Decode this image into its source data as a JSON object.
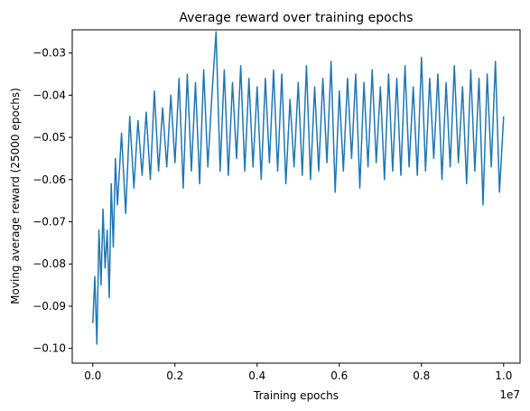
{
  "chart_data": {
    "type": "line",
    "title": "Average reward over training epochs",
    "xlabel": "Training epochs",
    "ylabel": "Moving average reward (25000 epochs)",
    "x_offset_label": "1e7",
    "xlim": [
      -500000,
      10400000
    ],
    "ylim": [
      -0.1035,
      -0.0245
    ],
    "x_ticks": [
      0,
      2000000,
      4000000,
      6000000,
      8000000,
      10000000
    ],
    "x_tick_labels": [
      "0.0",
      "0.2",
      "0.4",
      "0.6",
      "0.8",
      "1.0"
    ],
    "y_ticks": [
      -0.1,
      -0.09,
      -0.08,
      -0.07,
      -0.06,
      -0.05,
      -0.04,
      -0.03
    ],
    "y_tick_labels": [
      "−0.10",
      "−0.09",
      "−0.08",
      "−0.07",
      "−0.06",
      "−0.05",
      "−0.04",
      "−0.03"
    ],
    "grid": false,
    "legend": "none",
    "line_color": "#1f77b4",
    "series": [
      {
        "x": [
          0,
          50000,
          100000,
          150000,
          200000,
          250000,
          300000,
          350000,
          400000,
          450000,
          500000,
          550000,
          600000,
          700000,
          800000,
          900000,
          1000000,
          1100000,
          1200000,
          1300000,
          1400000,
          1500000,
          1600000,
          1700000,
          1800000,
          1900000,
          2000000,
          2100000,
          2200000,
          2300000,
          2400000,
          2500000,
          2600000,
          2700000,
          2800000,
          2900000,
          3000000,
          3100000,
          3200000,
          3300000,
          3400000,
          3500000,
          3600000,
          3700000,
          3800000,
          3900000,
          4000000,
          4100000,
          4200000,
          4300000,
          4400000,
          4500000,
          4600000,
          4700000,
          4800000,
          4900000,
          5000000,
          5100000,
          5200000,
          5300000,
          5400000,
          5500000,
          5600000,
          5700000,
          5800000,
          5900000,
          6000000,
          6100000,
          6200000,
          6300000,
          6400000,
          6500000,
          6600000,
          6700000,
          6800000,
          6900000,
          7000000,
          7100000,
          7200000,
          7300000,
          7400000,
          7500000,
          7600000,
          7700000,
          7800000,
          7900000,
          8000000,
          8100000,
          8200000,
          8300000,
          8400000,
          8500000,
          8600000,
          8700000,
          8800000,
          8900000,
          9000000,
          9100000,
          9200000,
          9300000,
          9400000,
          9500000,
          9600000,
          9700000,
          9800000,
          9900000,
          10000000
        ],
        "values": [
          -0.094,
          -0.083,
          -0.099,
          -0.072,
          -0.085,
          -0.067,
          -0.081,
          -0.072,
          -0.088,
          -0.061,
          -0.076,
          -0.055,
          -0.066,
          -0.049,
          -0.068,
          -0.045,
          -0.062,
          -0.046,
          -0.059,
          -0.044,
          -0.06,
          -0.039,
          -0.058,
          -0.043,
          -0.057,
          -0.04,
          -0.056,
          -0.036,
          -0.062,
          -0.035,
          -0.058,
          -0.037,
          -0.061,
          -0.034,
          -0.057,
          -0.04,
          -0.025,
          -0.058,
          -0.034,
          -0.059,
          -0.037,
          -0.055,
          -0.033,
          -0.058,
          -0.036,
          -0.057,
          -0.038,
          -0.06,
          -0.036,
          -0.056,
          -0.034,
          -0.058,
          -0.035,
          -0.061,
          -0.041,
          -0.057,
          -0.037,
          -0.059,
          -0.033,
          -0.06,
          -0.038,
          -0.058,
          -0.036,
          -0.056,
          -0.032,
          -0.063,
          -0.039,
          -0.058,
          -0.036,
          -0.055,
          -0.035,
          -0.062,
          -0.037,
          -0.057,
          -0.034,
          -0.056,
          -0.038,
          -0.06,
          -0.035,
          -0.058,
          -0.036,
          -0.059,
          -0.033,
          -0.057,
          -0.038,
          -0.059,
          -0.031,
          -0.058,
          -0.036,
          -0.055,
          -0.035,
          -0.06,
          -0.037,
          -0.057,
          -0.033,
          -0.056,
          -0.038,
          -0.061,
          -0.034,
          -0.058,
          -0.036,
          -0.066,
          -0.035,
          -0.057,
          -0.032,
          -0.063,
          -0.045
        ]
      }
    ]
  }
}
